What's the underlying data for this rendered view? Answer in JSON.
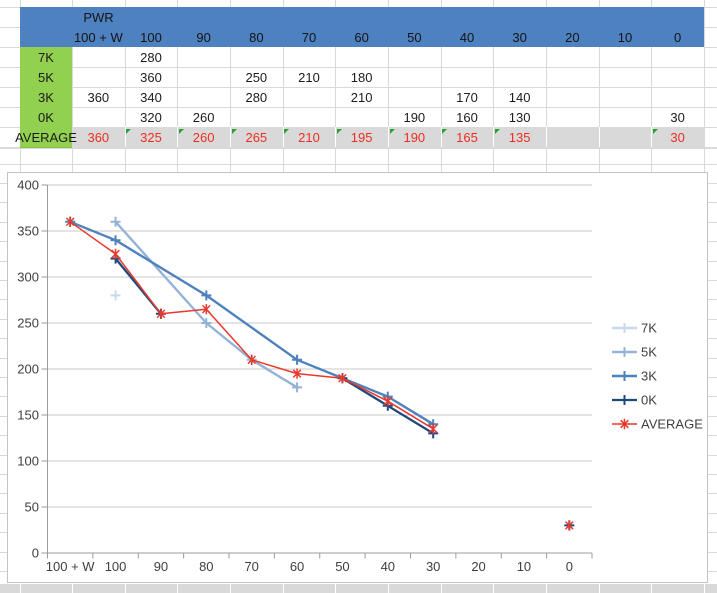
{
  "table": {
    "header": {
      "title": "PWR",
      "columns": [
        "100 + W",
        "100",
        "90",
        "80",
        "70",
        "60",
        "50",
        "40",
        "30",
        "20",
        "10",
        "0"
      ]
    },
    "rows": [
      {
        "label": "7K",
        "values": [
          null,
          280,
          null,
          null,
          null,
          null,
          null,
          null,
          null,
          null,
          null,
          null
        ]
      },
      {
        "label": "5K",
        "values": [
          null,
          360,
          null,
          250,
          210,
          180,
          null,
          null,
          null,
          null,
          null,
          null
        ]
      },
      {
        "label": "3K",
        "values": [
          360,
          340,
          null,
          280,
          null,
          210,
          null,
          170,
          140,
          null,
          null,
          null
        ]
      },
      {
        "label": "0K",
        "values": [
          null,
          320,
          260,
          null,
          null,
          null,
          190,
          160,
          130,
          null,
          null,
          30
        ]
      },
      {
        "label": "AVERAGE",
        "values": [
          360,
          325,
          260,
          265,
          210,
          195,
          190,
          165,
          135,
          null,
          null,
          30
        ],
        "is_average": true,
        "flag_indices": [
          1,
          2,
          3,
          4,
          5,
          6,
          7,
          8,
          11
        ]
      }
    ]
  },
  "colors": {
    "header_blue": "#4d81bf",
    "label_green": "#92d050",
    "average_gray": "#d9d9d9",
    "value_red": "#ee2e21",
    "flag_green": "#27a037",
    "sheet_gridline": "#d9d9d9",
    "chart_border": "#c3c3c3",
    "chart_gridline": "#c9c9c9",
    "chart_axis": "#9b9b9b",
    "chart_text": "#3f3f3f"
  },
  "chart_data": {
    "type": "line",
    "title": "",
    "categories": [
      "100 + W",
      "100",
      "90",
      "80",
      "70",
      "60",
      "50",
      "40",
      "30",
      "20",
      "10",
      "0"
    ],
    "ylim": [
      0,
      400
    ],
    "yticks": [
      0,
      50,
      100,
      150,
      200,
      250,
      300,
      350,
      400
    ],
    "grid": true,
    "legend_position": "right",
    "series": [
      {
        "name": "7K",
        "color": "#c7d9f1",
        "marker": "plus",
        "line_width": 2.4,
        "points": [
          [
            1,
            280
          ]
        ],
        "line_segments": []
      },
      {
        "name": "5K",
        "color": "#95b3d7",
        "marker": "plus",
        "line_width": 2.4,
        "points": [
          [
            1,
            360
          ],
          [
            3,
            250
          ],
          [
            4,
            210
          ],
          [
            5,
            180
          ]
        ],
        "line_segments": [
          [
            [
              1,
              360
            ],
            [
              3,
              250
            ],
            [
              4,
              210
            ],
            [
              5,
              180
            ]
          ]
        ]
      },
      {
        "name": "3K",
        "color": "#4f81bd",
        "marker": "plus",
        "line_width": 2.4,
        "points": [
          [
            0,
            360
          ],
          [
            1,
            340
          ],
          [
            3,
            280
          ],
          [
            5,
            210
          ],
          [
            7,
            170
          ],
          [
            8,
            140
          ]
        ],
        "line_segments": [
          [
            [
              0,
              360
            ],
            [
              1,
              340
            ],
            [
              3,
              280
            ],
            [
              5,
              210
            ],
            [
              7,
              170
            ],
            [
              8,
              140
            ]
          ]
        ]
      },
      {
        "name": "0K",
        "color": "#1f497d",
        "marker": "plus",
        "line_width": 2.3,
        "points": [
          [
            1,
            320
          ],
          [
            2,
            260
          ],
          [
            6,
            190
          ],
          [
            7,
            160
          ],
          [
            8,
            130
          ],
          [
            11,
            30
          ]
        ],
        "line_segments": [
          [
            [
              1,
              320
            ],
            [
              2,
              260
            ]
          ],
          [
            [
              6,
              190
            ],
            [
              7,
              160
            ],
            [
              8,
              130
            ]
          ]
        ]
      },
      {
        "name": "AVERAGE",
        "color": "#e8392d",
        "marker": "star",
        "line_width": 1.5,
        "points": [
          [
            0,
            360
          ],
          [
            1,
            325
          ],
          [
            2,
            260
          ],
          [
            3,
            265
          ],
          [
            4,
            210
          ],
          [
            5,
            195
          ],
          [
            6,
            190
          ],
          [
            7,
            165
          ],
          [
            8,
            135
          ],
          [
            11,
            30
          ]
        ],
        "line_segments": [
          [
            [
              0,
              360
            ],
            [
              1,
              325
            ],
            [
              2,
              260
            ],
            [
              3,
              265
            ],
            [
              4,
              210
            ],
            [
              5,
              195
            ],
            [
              6,
              190
            ],
            [
              7,
              165
            ],
            [
              8,
              135
            ]
          ]
        ]
      }
    ]
  }
}
